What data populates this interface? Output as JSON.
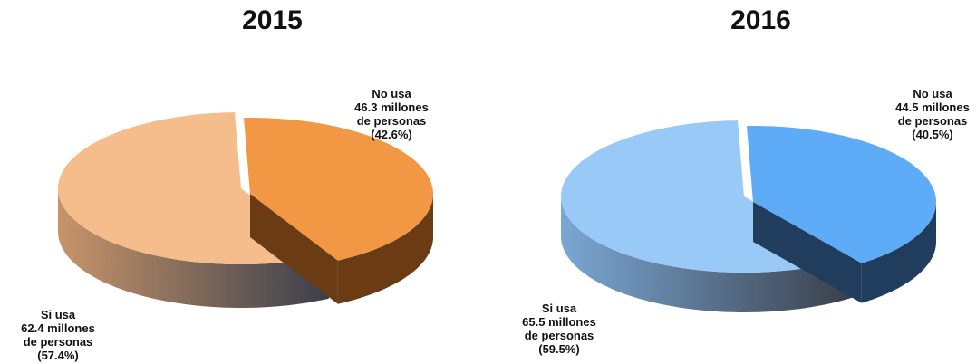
{
  "chart_data": [
    {
      "type": "pie",
      "title": "2015",
      "slices": [
        {
          "label_lines": [
            "No usa",
            "46.3 millones",
            "de personas",
            "(42.6%)"
          ],
          "value": 46.3,
          "percent": 42.6
        },
        {
          "label_lines": [
            "Si usa",
            "62.4 millones",
            "de personas",
            "(57.4%)"
          ],
          "value": 62.4,
          "percent": 57.4
        }
      ],
      "colors": {
        "top_small": "#f29744",
        "top_large": "#f5bd8c",
        "side_small": "#6b3c14",
        "side_large": "#c8946a"
      }
    },
    {
      "type": "pie",
      "title": "2016",
      "slices": [
        {
          "label_lines": [
            "No usa",
            "44.5 millones",
            "de personas",
            "(40.5%)"
          ],
          "value": 44.5,
          "percent": 40.5
        },
        {
          "label_lines": [
            "Si usa",
            "65.5 millones",
            "de personas",
            "(59.5%)"
          ],
          "value": 65.5,
          "percent": 59.5
        }
      ],
      "colors": {
        "top_small": "#5eacf8",
        "top_large": "#99c9f7",
        "side_small": "#213d5e",
        "side_large": "#7aa7d4"
      }
    }
  ]
}
